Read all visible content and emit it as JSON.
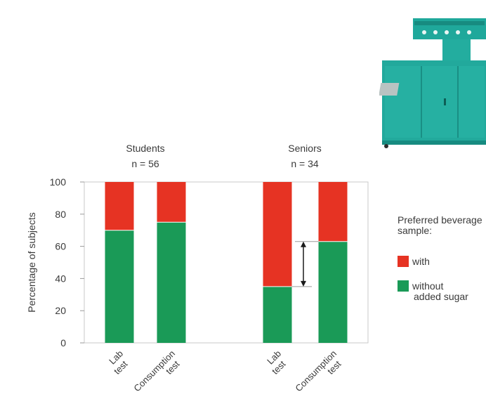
{
  "chart_data": {
    "type": "bar",
    "stacked": true,
    "ylabel": "Percentage of subjects",
    "ylim": [
      0,
      100
    ],
    "yticks": [
      0,
      20,
      40,
      60,
      80,
      100
    ],
    "groups": [
      {
        "title": "Students",
        "n_label": "n = 56",
        "categories": [
          "Lab test",
          "Consumption test"
        ]
      },
      {
        "title": "Seniors",
        "n_label": "n = 34",
        "categories": [
          "Lab test",
          "Consumption test"
        ]
      }
    ],
    "series": [
      {
        "name": "without added sugar",
        "color": "#1a9a57",
        "values": [
          70,
          75,
          35,
          63
        ]
      },
      {
        "name": "with",
        "color": "#e63323",
        "values": [
          30,
          25,
          65,
          37
        ]
      }
    ],
    "legend": {
      "title": "Preferred beverage sample:",
      "items": [
        {
          "label": "with",
          "color": "#e63323"
        },
        {
          "label": "without added sugar",
          "color": "#1a9a57"
        }
      ]
    },
    "annotation": {
      "type": "difference-arrow",
      "group": "Seniors",
      "from": 35,
      "to": 63
    }
  },
  "decoration": {
    "image": "sensory-test-machine-icon",
    "color": "#20a69a"
  }
}
